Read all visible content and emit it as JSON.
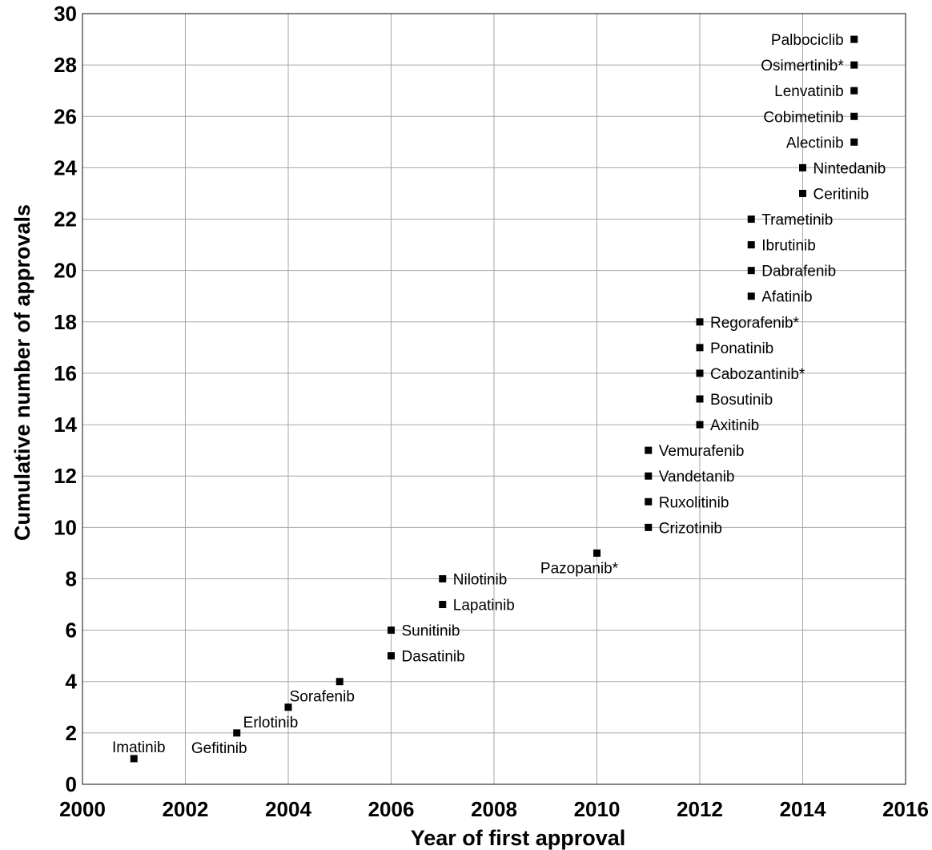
{
  "chart_data": {
    "type": "scatter",
    "title": "",
    "xlabel": "Year of first approval",
    "ylabel": "Cumulative number of approvals",
    "xlim": [
      2000,
      2016
    ],
    "ylim": [
      0,
      30
    ],
    "x_ticks": [
      "2000",
      "2002",
      "2004",
      "2006",
      "2008",
      "2010",
      "2012",
      "2014",
      "2016"
    ],
    "y_ticks": [
      "0",
      "2",
      "4",
      "6",
      "8",
      "10",
      "12",
      "14",
      "16",
      "18",
      "20",
      "22",
      "24",
      "26",
      "28",
      "30"
    ],
    "grid": true,
    "marker": "square",
    "marker_color": "#000000",
    "points": [
      {
        "label": "Imatinib",
        "x": 2001,
        "y": 1,
        "label_pos": "above"
      },
      {
        "label": "Gefitinib",
        "x": 2003,
        "y": 2,
        "label_pos": "below"
      },
      {
        "label": "Erlotinib",
        "x": 2004,
        "y": 3,
        "label_pos": "below"
      },
      {
        "label": "Sorafenib",
        "x": 2005,
        "y": 4,
        "label_pos": "below"
      },
      {
        "label": "Dasatinib",
        "x": 2006,
        "y": 5,
        "label_pos": "right"
      },
      {
        "label": "Sunitinib",
        "x": 2006,
        "y": 6,
        "label_pos": "right"
      },
      {
        "label": "Lapatinib",
        "x": 2007,
        "y": 7,
        "label_pos": "right"
      },
      {
        "label": "Nilotinib",
        "x": 2007,
        "y": 8,
        "label_pos": "right"
      },
      {
        "label": "Pazopanib*",
        "x": 2010,
        "y": 9,
        "label_pos": "below"
      },
      {
        "label": "Crizotinib",
        "x": 2011,
        "y": 10,
        "label_pos": "right"
      },
      {
        "label": "Ruxolitinib",
        "x": 2011,
        "y": 11,
        "label_pos": "right"
      },
      {
        "label": "Vandetanib",
        "x": 2011,
        "y": 12,
        "label_pos": "right"
      },
      {
        "label": "Vemurafenib",
        "x": 2011,
        "y": 13,
        "label_pos": "right"
      },
      {
        "label": "Axitinib",
        "x": 2012,
        "y": 14,
        "label_pos": "right"
      },
      {
        "label": "Bosutinib",
        "x": 2012,
        "y": 15,
        "label_pos": "right"
      },
      {
        "label": "Cabozantinib*",
        "x": 2012,
        "y": 16,
        "label_pos": "right"
      },
      {
        "label": "Ponatinib",
        "x": 2012,
        "y": 17,
        "label_pos": "right"
      },
      {
        "label": "Regorafenib*",
        "x": 2012,
        "y": 18,
        "label_pos": "right"
      },
      {
        "label": "Afatinib",
        "x": 2013,
        "y": 19,
        "label_pos": "right"
      },
      {
        "label": "Dabrafenib",
        "x": 2013,
        "y": 20,
        "label_pos": "right"
      },
      {
        "label": "Ibrutinib",
        "x": 2013,
        "y": 21,
        "label_pos": "right"
      },
      {
        "label": "Trametinib",
        "x": 2013,
        "y": 22,
        "label_pos": "right"
      },
      {
        "label": "Ceritinib",
        "x": 2014,
        "y": 23,
        "label_pos": "right"
      },
      {
        "label": "Nintedanib",
        "x": 2014,
        "y": 24,
        "label_pos": "right"
      },
      {
        "label": "Alectinib",
        "x": 2015,
        "y": 25,
        "label_pos": "left"
      },
      {
        "label": "Cobimetinib",
        "x": 2015,
        "y": 26,
        "label_pos": "left"
      },
      {
        "label": "Lenvatinib",
        "x": 2015,
        "y": 27,
        "label_pos": "left"
      },
      {
        "label": "Osimertinib*",
        "x": 2015,
        "y": 28,
        "label_pos": "left"
      },
      {
        "label": "Palbociclib",
        "x": 2015,
        "y": 29,
        "label_pos": "left"
      }
    ]
  }
}
